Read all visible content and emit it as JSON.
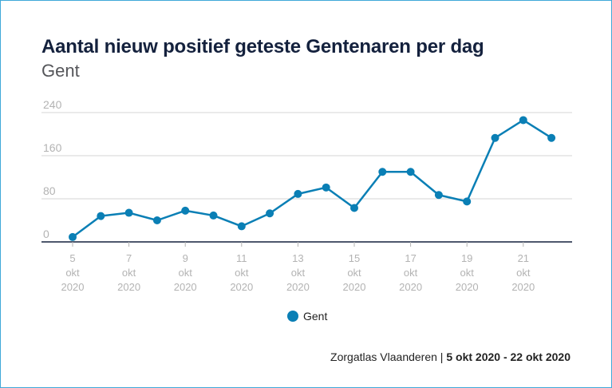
{
  "title": "Aantal nieuw positief geteste Gentenaren per dag",
  "subtitle": "Gent",
  "legend": {
    "label": "Gent"
  },
  "source": {
    "name": "Zorgatlas Vlaanderen",
    "separator": " | ",
    "period": "5 okt 2020 - 22 okt 2020"
  },
  "colors": {
    "series": "#0a7fb5",
    "grid": "#d6d6d6",
    "axis": "#14213d",
    "tick": "#b3b3b3"
  },
  "chart_data": {
    "type": "line",
    "title": "Aantal nieuw positief geteste Gentenaren per dag",
    "subtitle": "Gent",
    "x": [
      "5 okt 2020",
      "6 okt 2020",
      "7 okt 2020",
      "8 okt 2020",
      "9 okt 2020",
      "10 okt 2020",
      "11 okt 2020",
      "12 okt 2020",
      "13 okt 2020",
      "14 okt 2020",
      "15 okt 2020",
      "16 okt 2020",
      "17 okt 2020",
      "18 okt 2020",
      "19 okt 2020",
      "20 okt 2020",
      "21 okt 2020",
      "22 okt 2020"
    ],
    "x_tick_labels": [
      [
        "5",
        "okt",
        "2020"
      ],
      [
        "7",
        "okt",
        "2020"
      ],
      [
        "9",
        "okt",
        "2020"
      ],
      [
        "11",
        "okt",
        "2020"
      ],
      [
        "13",
        "okt",
        "2020"
      ],
      [
        "15",
        "okt",
        "2020"
      ],
      [
        "17",
        "okt",
        "2020"
      ],
      [
        "19",
        "okt",
        "2020"
      ],
      [
        "21",
        "okt",
        "2020"
      ]
    ],
    "y_ticks": [
      0,
      80,
      160,
      240
    ],
    "ylim": [
      0,
      240
    ],
    "grid": true,
    "legend_position": "bottom-center",
    "series": [
      {
        "name": "Gent",
        "values": [
          9,
          48,
          54,
          40,
          58,
          49,
          29,
          53,
          89,
          101,
          63,
          130,
          130,
          87,
          75,
          193,
          226,
          193
        ]
      }
    ]
  }
}
